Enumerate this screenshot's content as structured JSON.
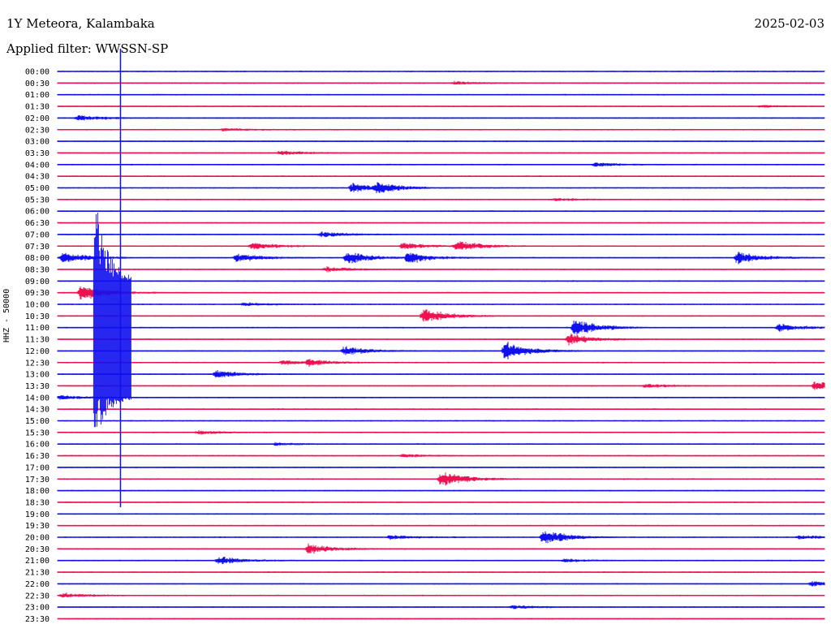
{
  "header": {
    "station": "1Y Meteora, Kalambaka",
    "date": "2025-02-03",
    "filter": "Applied filter: WWSSN-SP"
  },
  "chart_data": {
    "type": "line",
    "ylabel": "HHZ - 50000",
    "colors": {
      "even_row": "#1010ee",
      "odd_row": "#ee1050"
    },
    "rows": [
      "00:00",
      "00:30",
      "01:00",
      "01:30",
      "02:00",
      "02:30",
      "03:00",
      "03:30",
      "04:00",
      "04:30",
      "05:00",
      "05:30",
      "06:00",
      "06:30",
      "07:00",
      "07:30",
      "08:00",
      "08:30",
      "09:00",
      "09:30",
      "10:00",
      "10:30",
      "11:00",
      "11:30",
      "12:00",
      "12:30",
      "13:00",
      "13:30",
      "14:00",
      "14:30",
      "15:00",
      "15:30",
      "16:00",
      "16:30",
      "17:00",
      "17:30",
      "18:00",
      "18:30",
      "19:00",
      "19:30",
      "20:00",
      "20:30",
      "21:00",
      "21:30",
      "22:00",
      "22:30",
      "23:00",
      "23:30"
    ],
    "row_duration_minutes": 30,
    "events": [
      {
        "row": "00:30",
        "minute": 15.5,
        "amplitude": 0.3
      },
      {
        "row": "01:30",
        "minute": 27.5,
        "amplitude": 0.2
      },
      {
        "row": "02:00",
        "minute": 0.8,
        "amplitude": 0.5
      },
      {
        "row": "02:30",
        "minute": 6.5,
        "amplitude": 0.25
      },
      {
        "row": "03:30",
        "minute": 8.7,
        "amplitude": 0.4
      },
      {
        "row": "04:00",
        "minute": 21,
        "amplitude": 0.35
      },
      {
        "row": "05:00",
        "minute": 11.5,
        "amplitude": 0.9
      },
      {
        "row": "05:00",
        "minute": 12.5,
        "amplitude": 0.8
      },
      {
        "row": "05:30",
        "minute": 19.5,
        "amplitude": 0.2
      },
      {
        "row": "07:00",
        "minute": 10.3,
        "amplitude": 0.5
      },
      {
        "row": "07:30",
        "minute": 7.6,
        "amplitude": 0.6
      },
      {
        "row": "07:30",
        "minute": 13.5,
        "amplitude": 0.6
      },
      {
        "row": "07:30",
        "minute": 15.6,
        "amplitude": 0.9
      },
      {
        "row": "08:00",
        "minute": 0.2,
        "amplitude": 1.0
      },
      {
        "row": "08:00",
        "minute": 7,
        "amplitude": 0.8
      },
      {
        "row": "08:00",
        "minute": 11.3,
        "amplitude": 1.1
      },
      {
        "row": "08:00",
        "minute": 13.7,
        "amplitude": 1.0
      },
      {
        "row": "08:00",
        "minute": 26.6,
        "amplitude": 1.1
      },
      {
        "row": "08:30",
        "minute": 10.5,
        "amplitude": 0.45
      },
      {
        "row": "09:30",
        "minute": 0.9,
        "amplitude": 1.5
      },
      {
        "row": "10:00",
        "minute": 7.3,
        "amplitude": 0.3
      },
      {
        "row": "10:30",
        "minute": 14.3,
        "amplitude": 1.3
      },
      {
        "row": "11:00",
        "minute": 20.2,
        "amplitude": 1.6
      },
      {
        "row": "11:00",
        "minute": 28.2,
        "amplitude": 0.7
      },
      {
        "row": "11:30",
        "minute": 20,
        "amplitude": 1.0
      },
      {
        "row": "12:00",
        "minute": 11.2,
        "amplitude": 0.8
      },
      {
        "row": "12:00",
        "minute": 17.5,
        "amplitude": 1.6
      },
      {
        "row": "12:30",
        "minute": 8.8,
        "amplitude": 0.4
      },
      {
        "row": "12:30",
        "minute": 9.8,
        "amplitude": 0.5
      },
      {
        "row": "13:00",
        "minute": 6.2,
        "amplitude": 0.7
      },
      {
        "row": "13:30",
        "minute": 23,
        "amplitude": 0.35
      },
      {
        "row": "13:30",
        "minute": 29.6,
        "amplitude": 0.9
      },
      {
        "row": "14:00",
        "minute": 0.1,
        "amplitude": 0.35
      },
      {
        "row": "15:30",
        "minute": 5.5,
        "amplitude": 0.3
      },
      {
        "row": "16:00",
        "minute": 8.5,
        "amplitude": 0.25
      },
      {
        "row": "16:30",
        "minute": 13.5,
        "amplitude": 0.3
      },
      {
        "row": "17:30",
        "minute": 15,
        "amplitude": 1.5
      },
      {
        "row": "20:00",
        "minute": 19,
        "amplitude": 1.4
      },
      {
        "row": "20:00",
        "minute": 13,
        "amplitude": 0.4
      },
      {
        "row": "20:00",
        "minute": 29,
        "amplitude": 0.35
      },
      {
        "row": "20:30",
        "minute": 9.8,
        "amplitude": 0.9
      },
      {
        "row": "21:00",
        "minute": 6.3,
        "amplitude": 0.7
      },
      {
        "row": "21:00",
        "minute": 19.8,
        "amplitude": 0.3
      },
      {
        "row": "22:00",
        "minute": 29.5,
        "amplitude": 0.4
      },
      {
        "row": "22:30",
        "minute": 0.2,
        "amplitude": 0.4
      },
      {
        "row": "23:00",
        "minute": 17.8,
        "amplitude": 0.3
      }
    ],
    "large_event": {
      "start_row": "07:00",
      "minute": 1.6,
      "end_row": "15:00",
      "note": "large local event spanning multiple rows"
    },
    "spike": {
      "start_row": "00:00",
      "minute": 2.3,
      "end_row": "18:30"
    }
  }
}
